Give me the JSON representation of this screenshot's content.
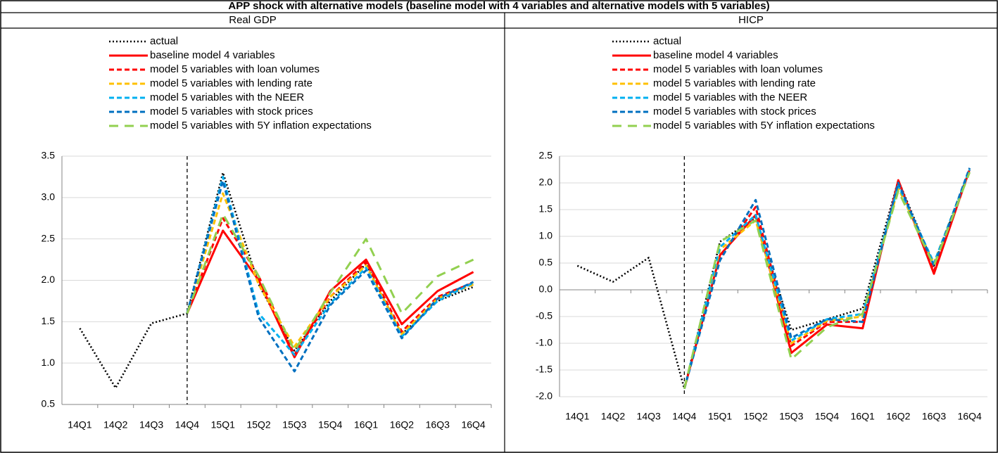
{
  "title": "APP shock with alternative models (baseline model with 4 variables and alternative models with 5 variables)",
  "chart_data": [
    {
      "type": "line",
      "title": "Real GDP",
      "categories": [
        "14Q1",
        "14Q2",
        "14Q3",
        "14Q4",
        "15Q1",
        "15Q2",
        "15Q3",
        "15Q4",
        "16Q1",
        "16Q2",
        "16Q3",
        "16Q4"
      ],
      "ylim": [
        0.5,
        3.5
      ],
      "yticks": [
        0.5,
        {
          "value": 1,
          "label": "1.0"
        },
        1.5,
        {
          "value": 2,
          "label": "2.0"
        },
        2.5,
        {
          "value": 3,
          "label": "3.0"
        },
        3.5
      ],
      "grid": true,
      "series": [
        {
          "name": "actual",
          "color": "#000000",
          "dash": "dotted",
          "values": [
            1.42,
            0.7,
            1.48,
            1.6,
            3.3,
            1.95,
            1.15,
            1.75,
            2.2,
            1.35,
            1.75,
            1.92
          ]
        },
        {
          "name": "baseline model 4 variables",
          "color": "#ff0000",
          "dash": "solid",
          "values": [
            null,
            null,
            null,
            1.6,
            2.6,
            2.0,
            1.07,
            1.87,
            2.25,
            1.47,
            1.87,
            2.1
          ]
        },
        {
          "name": "model 5 variables with loan volumes",
          "color": "#ff0000",
          "dash": "dashed",
          "values": [
            null,
            null,
            null,
            1.6,
            2.75,
            2.05,
            1.1,
            1.8,
            2.22,
            1.38,
            1.8,
            1.97
          ]
        },
        {
          "name": "model 5 variables with lending rate",
          "color": "#ffc000",
          "dash": "dashed",
          "values": [
            null,
            null,
            null,
            1.6,
            3.05,
            1.95,
            1.2,
            1.8,
            2.18,
            1.35,
            1.78,
            1.95
          ]
        },
        {
          "name": "model 5 variables with the NEER",
          "color": "#00b0f0",
          "dash": "dashed",
          "values": [
            null,
            null,
            null,
            1.6,
            3.25,
            1.6,
            1.1,
            1.72,
            2.15,
            1.32,
            1.75,
            1.97
          ]
        },
        {
          "name": "model 5 variables with stock prices",
          "color": "#0070c0",
          "dash": "dashed",
          "values": [
            null,
            null,
            null,
            1.6,
            3.2,
            1.55,
            0.9,
            1.7,
            2.12,
            1.3,
            1.78,
            1.98
          ]
        },
        {
          "name": "model 5 variables with 5Y inflation expectations",
          "color": "#92d050",
          "dash": "longdash",
          "values": [
            null,
            null,
            null,
            1.6,
            2.8,
            2.05,
            1.15,
            1.85,
            2.5,
            1.6,
            2.05,
            2.25
          ]
        }
      ]
    },
    {
      "type": "line",
      "title": "HICP",
      "categories": [
        "14Q1",
        "14Q2",
        "14Q3",
        "14Q4",
        "15Q1",
        "15Q2",
        "15Q3",
        "15Q4",
        "16Q1",
        "16Q2",
        "16Q3",
        "16Q4"
      ],
      "ylim": [
        -2,
        2.5
      ],
      "yticks": [
        {
          "value": -2,
          "label": "-2.0"
        },
        -1.5,
        {
          "value": -1,
          "label": "-1.0"
        },
        -0.5,
        {
          "value": 0,
          "label": "0.0"
        },
        0.5,
        {
          "value": 1,
          "label": "1.0"
        },
        1.5,
        {
          "value": 2,
          "label": "2.0"
        },
        2.5
      ],
      "grid": true,
      "series": [
        {
          "name": "actual",
          "color": "#000000",
          "dash": "dotted",
          "values": [
            0.45,
            0.15,
            0.6,
            -1.85,
            0.9,
            1.35,
            -0.75,
            -0.55,
            -0.35,
            2.05,
            0.45,
            2.25
          ]
        },
        {
          "name": "baseline model 4 variables",
          "color": "#ff0000",
          "dash": "solid",
          "values": [
            null,
            null,
            null,
            -1.85,
            0.65,
            1.4,
            -1.18,
            -0.65,
            -0.72,
            2.05,
            0.3,
            2.25
          ]
        },
        {
          "name": "model 5 variables with loan volumes",
          "color": "#ff0000",
          "dash": "dashed",
          "values": [
            null,
            null,
            null,
            -1.85,
            0.6,
            1.55,
            -1.05,
            -0.6,
            -0.6,
            2.0,
            0.35,
            2.25
          ]
        },
        {
          "name": "model 5 variables with lending rate",
          "color": "#ffc000",
          "dash": "dashed",
          "values": [
            null,
            null,
            null,
            -1.85,
            0.75,
            1.3,
            -1.0,
            -0.58,
            -0.5,
            1.9,
            0.5,
            2.25
          ]
        },
        {
          "name": "model 5 variables with the NEER",
          "color": "#00b0f0",
          "dash": "dashed",
          "values": [
            null,
            null,
            null,
            -1.85,
            0.8,
            1.4,
            -0.95,
            -0.55,
            -0.45,
            1.95,
            0.5,
            2.25
          ]
        },
        {
          "name": "model 5 variables with stock prices",
          "color": "#0070c0",
          "dash": "dashed",
          "values": [
            null,
            null,
            null,
            -1.85,
            0.55,
            1.68,
            -0.9,
            -0.55,
            -0.6,
            2.0,
            0.45,
            2.28
          ]
        },
        {
          "name": "model 5 variables with 5Y inflation expectations",
          "color": "#92d050",
          "dash": "longdash",
          "values": [
            null,
            null,
            null,
            -1.85,
            0.9,
            1.3,
            -1.3,
            -0.7,
            -0.45,
            1.85,
            0.45,
            2.2
          ]
        }
      ]
    }
  ]
}
